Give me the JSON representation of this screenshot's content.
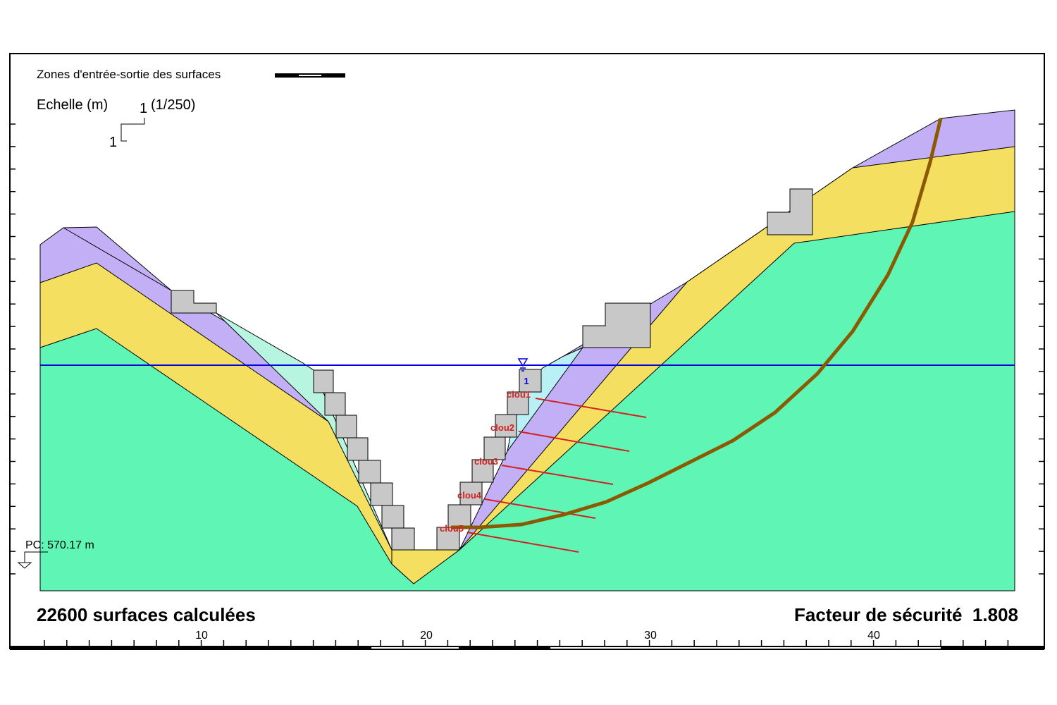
{
  "header": {
    "zones": "Zones d'entrée-sortie des surfaces",
    "scale_label": "Echelle (m)",
    "scale_h": "1",
    "scale_v": "1",
    "scale_ratio": "(1/250)"
  },
  "reference": "PC: 570.17 m",
  "water_table": "1",
  "nails": [
    "clou1",
    "clou2",
    "clou3",
    "clou4",
    "clou5"
  ],
  "footer": {
    "surfaces": "22600 surfaces calculées",
    "safety_factor": "Facteur de sécurité  1.808"
  },
  "x_axis": {
    "labels": [
      "10",
      "20",
      "30",
      "40"
    ]
  }
}
